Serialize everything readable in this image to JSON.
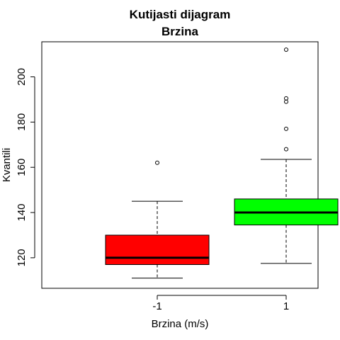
{
  "chart_data": {
    "type": "boxplot",
    "title": "Kutijasti dijagram",
    "subtitle": "Brzina",
    "xlabel": "Brzina (m/s)",
    "ylabel": "Kvantili",
    "ylim": [
      106.5,
      215.5
    ],
    "yticks": [
      "120",
      "140",
      "160",
      "180",
      "200"
    ],
    "categories": [
      "-1",
      "1"
    ],
    "grid": false,
    "boxes": [
      {
        "label": "-1",
        "color": "#ff0000",
        "whisker_low": 111,
        "q1": 117,
        "median": 120,
        "q3": 130,
        "whisker_high": 145,
        "outliers": [
          162
        ]
      },
      {
        "label": "1",
        "color": "#00ff00",
        "whisker_low": 117.5,
        "q1": 134.5,
        "median": 140,
        "q3": 146,
        "whisker_high": 163.5,
        "outliers": [
          168,
          177,
          189,
          190.5,
          212
        ]
      }
    ]
  }
}
